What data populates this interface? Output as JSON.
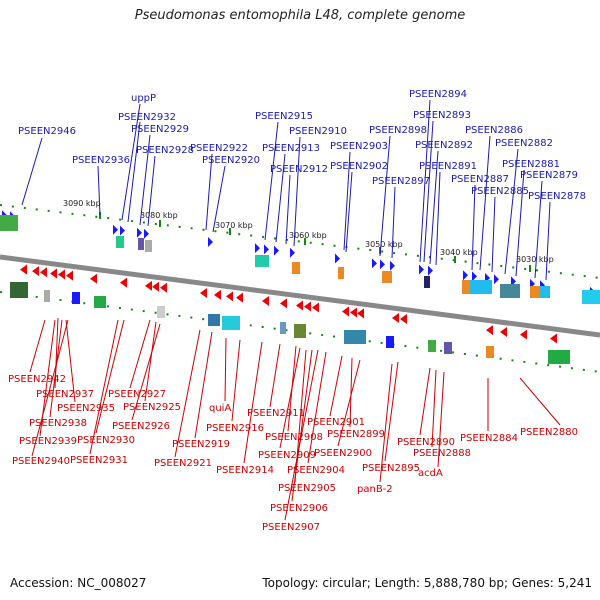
{
  "title": "Pseudomonas entomophila L48, complete genome",
  "footer": {
    "accession": "Accession: NC_008027",
    "summary": "Topology: circular; Length: 5,888,780 bp; Genes: 5,241"
  },
  "colors": {
    "forward": "#1a1aff",
    "reverse": "#ee0000",
    "top_label": "#1a1ab0",
    "bottom_label": "#cc0000",
    "backbone": "#888888",
    "tick": "#118811"
  },
  "kbp_markers": [
    "3090 kbp",
    "3080 kbp",
    "3070 kbp",
    "3060 kbp",
    "3050 kbp",
    "3040 kbp",
    "3030 kbp"
  ],
  "top_labels": [
    "PSEEN2946",
    "PSEEN2936",
    "uppP",
    "PSEEN2932",
    "PSEEN2929",
    "PSEEN2928",
    "PSEEN2922",
    "PSEEN2920",
    "PSEEN2915",
    "PSEEN2913",
    "PSEEN2912",
    "PSEEN2910",
    "PSEEN2903",
    "PSEEN2902",
    "PSEEN2898",
    "PSEEN2897",
    "PSEEN2894",
    "PSEEN2893",
    "PSEEN2892",
    "PSEEN2891",
    "PSEEN2887",
    "PSEEN2886",
    "PSEEN2885",
    "PSEEN2882",
    "PSEEN2881",
    "PSEEN2879",
    "PSEEN2878"
  ],
  "bottom_labels": [
    "PSEEN2942",
    "PSEEN2937",
    "PSEEN2935",
    "PSEEN2938",
    "PSEEN2939",
    "PSEEN2940",
    "PSEEN2931",
    "PSEEN2930",
    "PSEEN2927",
    "PSEEN2925",
    "PSEEN2926",
    "PSEEN2921",
    "PSEEN2919",
    "quiA",
    "PSEEN2916",
    "PSEEN2914",
    "PSEEN2911",
    "PSEEN2908",
    "PSEEN2909",
    "PSEEN2905",
    "PSEEN2906",
    "PSEEN2907",
    "PSEEN2904",
    "PSEEN2901",
    "PSEEN2899",
    "PSEEN2900",
    "PSEEN2895",
    "panB-2",
    "PSEEN2890",
    "PSEEN2888",
    "acdA",
    "PSEEN2884",
    "PSEEN2880"
  ]
}
